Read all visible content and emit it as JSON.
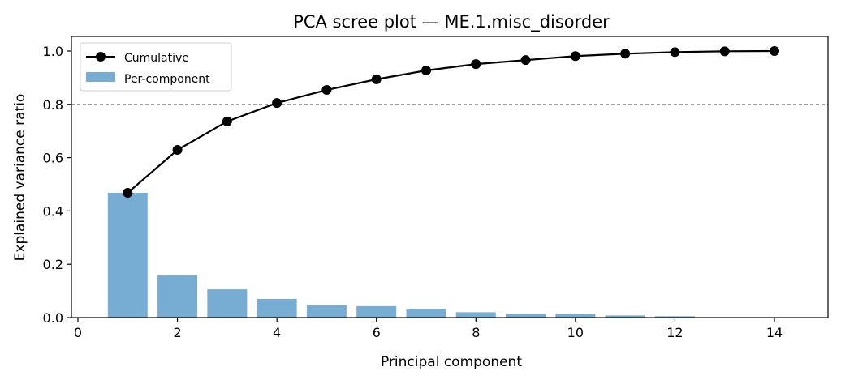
{
  "chart_data": {
    "type": "bar",
    "title": "PCA scree plot — ME.1.misc_disorder",
    "xlabel": "Principal component",
    "ylabel": "Explained variance ratio",
    "xlim": [
      -0.2,
      15.1
    ],
    "ylim": [
      0,
      1.05
    ],
    "xticks": [
      0,
      2,
      4,
      6,
      8,
      10,
      12,
      14
    ],
    "yticks": [
      0.0,
      0.2,
      0.4,
      0.6,
      0.8,
      1.0
    ],
    "threshold": 0.8,
    "grid": false,
    "legend_position": "top-left",
    "x": [
      1,
      2,
      3,
      4,
      5,
      6,
      7,
      8,
      9,
      10,
      11,
      12,
      13,
      14
    ],
    "series": [
      {
        "name": "Cumulative",
        "type": "line",
        "color": "#000000",
        "values": [
          0.468,
          0.629,
          0.736,
          0.805,
          0.854,
          0.894,
          0.927,
          0.951,
          0.966,
          0.981,
          0.99,
          0.996,
          0.999,
          1.0
        ]
      },
      {
        "name": "Per-component",
        "type": "bar",
        "color": "#77acd3",
        "values": [
          0.468,
          0.158,
          0.106,
          0.07,
          0.046,
          0.043,
          0.033,
          0.02,
          0.014,
          0.014,
          0.008,
          0.005,
          0.001,
          0.001
        ]
      }
    ]
  }
}
